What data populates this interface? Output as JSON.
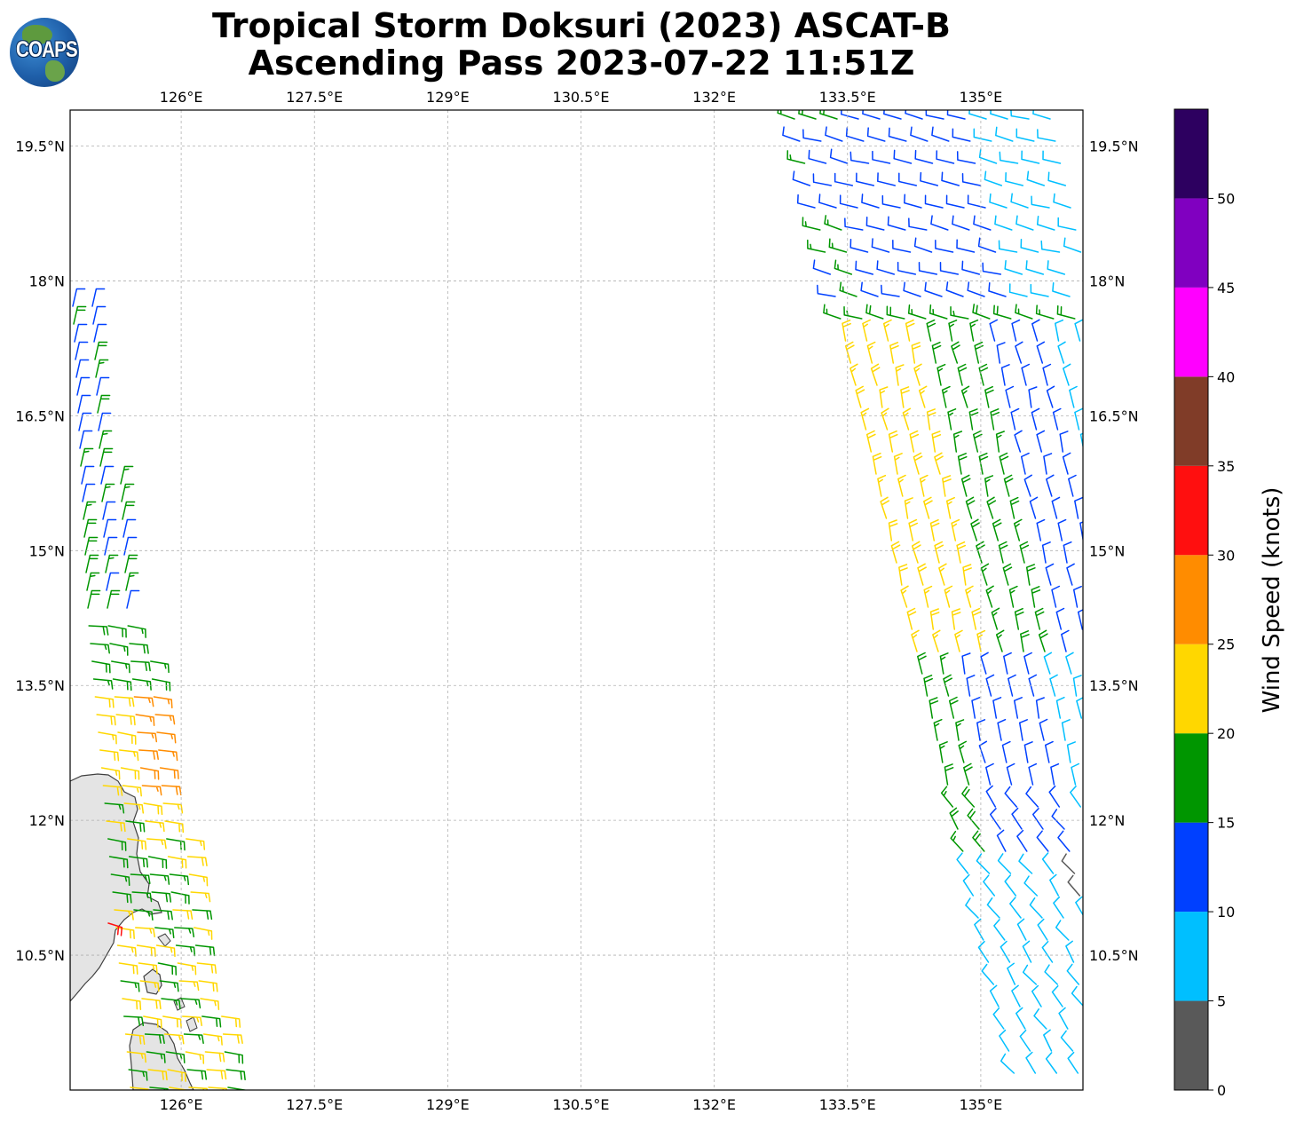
{
  "header": {
    "title_line_1": "Tropical Storm Doksuri (2023) ASCAT-B",
    "title_line_2": "Ascending Pass 2023-07-22 11:51Z",
    "logo_text": "COAPS"
  },
  "map": {
    "lon_range": [
      124.75,
      136.15
    ],
    "lat_range": [
      9.0,
      19.9
    ],
    "lon_ticks": [
      {
        "value": 126.0,
        "label": "126°E"
      },
      {
        "value": 127.5,
        "label": "127.5°E"
      },
      {
        "value": 129.0,
        "label": "129°E"
      },
      {
        "value": 130.5,
        "label": "130.5°E"
      },
      {
        "value": 132.0,
        "label": "132°E"
      },
      {
        "value": 133.5,
        "label": "133.5°E"
      },
      {
        "value": 135.0,
        "label": "135°E"
      }
    ],
    "lat_ticks": [
      {
        "value": 10.5,
        "label": "10.5°N"
      },
      {
        "value": 12.0,
        "label": "12°N"
      },
      {
        "value": 13.5,
        "label": "13.5°N"
      },
      {
        "value": 15.0,
        "label": "15°N"
      },
      {
        "value": 16.5,
        "label": "16.5°N"
      },
      {
        "value": 18.0,
        "label": "18°N"
      },
      {
        "value": 19.5,
        "label": "19.5°N"
      }
    ],
    "land_color": "#e3e3e3",
    "coast_color": "#404040"
  },
  "colorbar": {
    "title": "Wind Speed (knots)",
    "range": [
      0,
      55
    ],
    "bins": [
      {
        "from": 0,
        "to": 5,
        "color": "#595959"
      },
      {
        "from": 5,
        "to": 10,
        "color": "#00bfff"
      },
      {
        "from": 10,
        "to": 15,
        "color": "#0040ff"
      },
      {
        "from": 15,
        "to": 20,
        "color": "#009600"
      },
      {
        "from": 20,
        "to": 25,
        "color": "#ffd700"
      },
      {
        "from": 25,
        "to": 30,
        "color": "#ff8c00"
      },
      {
        "from": 30,
        "to": 35,
        "color": "#ff0f0f"
      },
      {
        "from": 35,
        "to": 40,
        "color": "#803c28"
      },
      {
        "from": 40,
        "to": 45,
        "color": "#ff00ff"
      },
      {
        "from": 45,
        "to": 50,
        "color": "#8000c0"
      },
      {
        "from": 50,
        "to": 55,
        "color": "#2d0060"
      }
    ],
    "tick_labels": [
      "0",
      "5",
      "10",
      "15",
      "20",
      "25",
      "30",
      "35",
      "40",
      "45",
      "50"
    ]
  }
}
